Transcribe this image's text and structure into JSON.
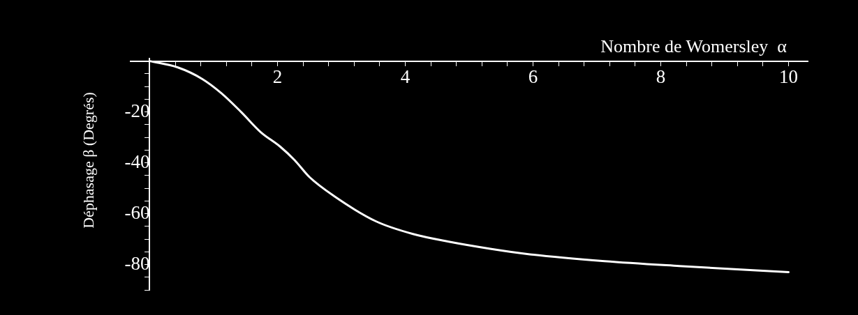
{
  "chart_data": {
    "type": "line",
    "xlabel": "Nombre de Womersley  α",
    "ylabel": "Déphasage β (Degrés)",
    "x": [
      0,
      0.44,
      0.82,
      1.12,
      1.43,
      1.74,
      2.04,
      2.27,
      2.5,
      2.88,
      3.54,
      4.12,
      4.68,
      5.33,
      5.95,
      7.12,
      8.29,
      10
    ],
    "series": [
      {
        "color": "#ffffff",
        "values": [
          0,
          -2.5,
          -7,
          -12.6,
          -20,
          -28,
          -33.6,
          -39,
          -45.6,
          -53,
          -63,
          -68,
          -71,
          -73.8,
          -76,
          -78.7,
          -80.6,
          -83
        ]
      }
    ],
    "xlim": [
      -0.3,
      10.3
    ],
    "ylim": [
      -90,
      1
    ],
    "xticks": [
      {
        "value": 0.4,
        "label": null
      },
      {
        "value": 0.8,
        "label": null
      },
      {
        "value": 1.2,
        "label": null
      },
      {
        "value": 1.6,
        "label": null
      },
      2,
      {
        "value": 2.4,
        "label": null
      },
      {
        "value": 2.8,
        "label": null
      },
      {
        "value": 3.2,
        "label": null
      },
      {
        "value": 3.6,
        "label": null
      },
      4,
      {
        "value": 4.4,
        "label": null
      },
      {
        "value": 4.8,
        "label": null
      },
      {
        "value": 5.2,
        "label": null
      },
      {
        "value": 5.6,
        "label": null
      },
      6,
      {
        "value": 6.4,
        "label": null
      },
      {
        "value": 6.8,
        "label": null
      },
      {
        "value": 7.2,
        "label": null
      },
      {
        "value": 7.6,
        "label": null
      },
      8,
      {
        "value": 8.4,
        "label": null
      },
      {
        "value": 8.8,
        "label": null
      },
      {
        "value": 9.2,
        "label": null
      },
      {
        "value": 9.6,
        "label": null
      },
      10
    ],
    "yticks": [
      {
        "value": -5,
        "label": null
      },
      {
        "value": -10,
        "label": null
      },
      {
        "value": -15,
        "label": null
      },
      -20,
      {
        "value": -25,
        "label": null
      },
      {
        "value": -30,
        "label": null
      },
      {
        "value": -35,
        "label": null
      },
      -40,
      {
        "value": -45,
        "label": null
      },
      {
        "value": -50,
        "label": null
      },
      {
        "value": -55,
        "label": null
      },
      -60,
      {
        "value": -65,
        "label": null
      },
      {
        "value": -70,
        "label": null
      },
      {
        "value": -75,
        "label": null
      },
      -80,
      {
        "value": -85,
        "label": null
      },
      {
        "value": -90,
        "label": null
      }
    ],
    "grid": false,
    "legend": false,
    "marker": "none",
    "line_style": "solid"
  }
}
